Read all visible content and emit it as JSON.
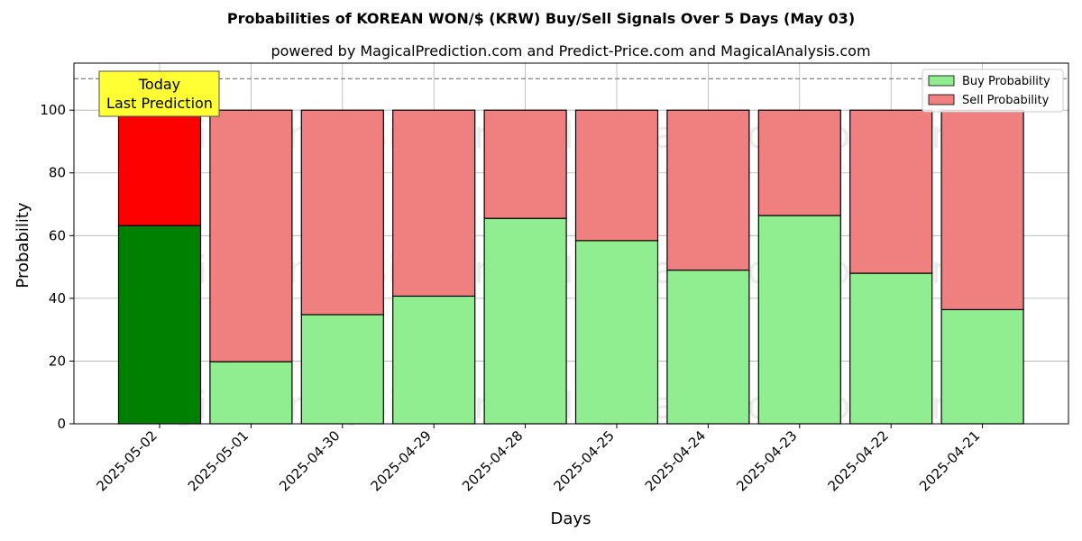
{
  "chart_data": {
    "type": "bar",
    "stacked": true,
    "title": "Probabilities of KOREAN WON/$ (KRW) Buy/Sell Signals Over 5 Days (May 03)",
    "subtitle": "powered by MagicalPrediction.com and Predict-Price.com and MagicalAnalysis.com",
    "xlabel": "Days",
    "ylabel": "Probability",
    "ylim": [
      0,
      115
    ],
    "yticks": [
      0,
      20,
      40,
      60,
      80,
      100
    ],
    "reference_line": 110,
    "grid": true,
    "legend_position": "top-right",
    "categories": [
      "2025-05-02",
      "2025-05-01",
      "2025-04-30",
      "2025-04-29",
      "2025-04-28",
      "2025-04-25",
      "2025-04-24",
      "2025-04-23",
      "2025-04-22",
      "2025-04-21"
    ],
    "series": [
      {
        "name": "Buy Probability",
        "values": [
          63.2,
          19.8,
          34.8,
          40.7,
          65.5,
          58.4,
          49.0,
          66.4,
          48.0,
          36.4
        ]
      },
      {
        "name": "Sell Probability",
        "values": [
          36.8,
          80.2,
          65.2,
          59.3,
          34.5,
          41.6,
          51.0,
          33.6,
          52.0,
          63.6
        ]
      }
    ],
    "colors": {
      "buy": "#90ee90",
      "sell": "#f08080",
      "buy_today": "#008000",
      "sell_today": "#ff0000",
      "annotation_bg": "#ffff33"
    },
    "annotation": {
      "lines": [
        "Today",
        "Last Prediction"
      ],
      "category": "2025-05-02"
    },
    "watermarks": [
      "MagicalAnalysis.com",
      "MagicalPrediction.com"
    ]
  }
}
